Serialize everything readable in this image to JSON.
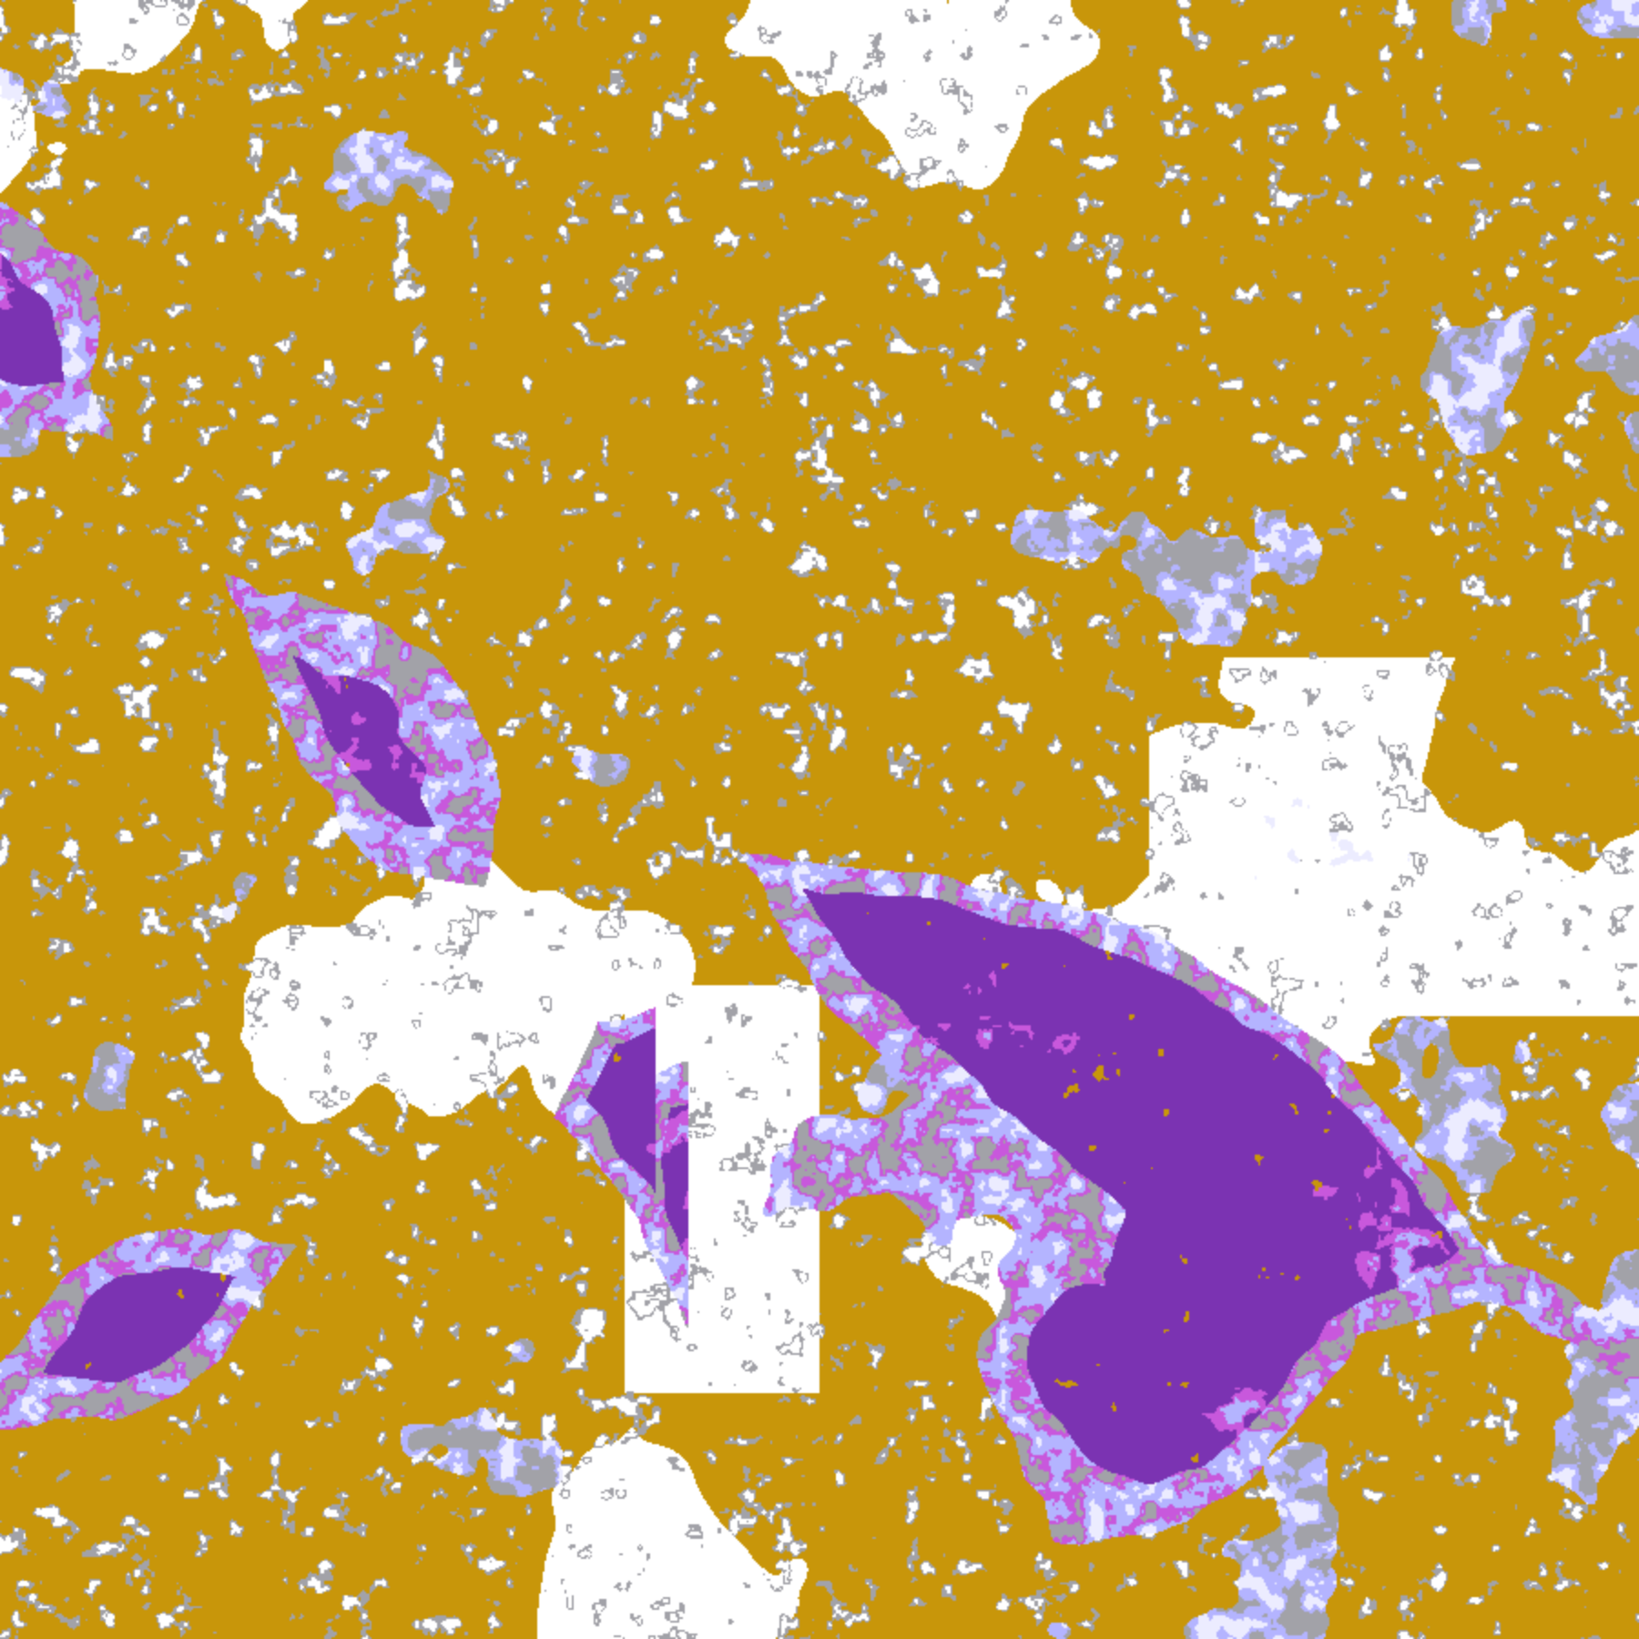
{
  "palette": {
    "clear": "#ffffff",
    "gold": "#c8960a",
    "gray": "#a2a2a8",
    "lavender": "#b4b4ff",
    "pale_lavender": "#ececff",
    "magenta": "#c858dc",
    "purple": "#7b33b2"
  }
}
